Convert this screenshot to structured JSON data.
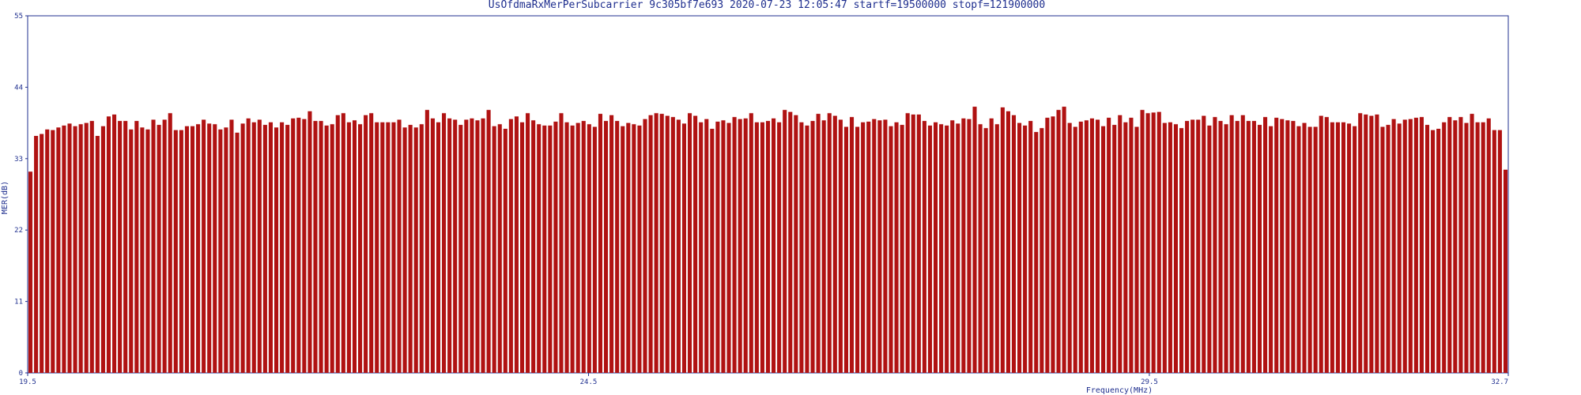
{
  "chart_data": {
    "type": "bar",
    "title": "UsOfdmaRxMerPerSubcarrier 9c305bf7e693 2020-07-23 12:05:47 startf=19500000 stopf=121900000",
    "xlabel": "Frequency(MHz)",
    "ylabel": "MER(dB)",
    "xlim": [
      19.5,
      32.7
    ],
    "ylim": [
      0,
      55
    ],
    "x_ticks": [
      "19.5",
      "24.5",
      "29.5",
      "32.7"
    ],
    "y_ticks": [
      "0",
      "11",
      "22",
      "33",
      "44",
      "55"
    ],
    "grid": false,
    "legend": "none",
    "colors": {
      "bar": "#b01212",
      "axis": "#1f2f8f",
      "background": "#ffffff"
    },
    "values": [
      31,
      36.5,
      36.8,
      37.5,
      37.4,
      37.8,
      38.1,
      38.4,
      38,
      38.3,
      38.5,
      38.8,
      36.5,
      38,
      39.5,
      39.8,
      38.8,
      38.8,
      37.5,
      38.8,
      37.8,
      37.5,
      39,
      38.2,
      39,
      40,
      37.4,
      37.4,
      38,
      38,
      38.3,
      39,
      38.4,
      38.3,
      37.5,
      37.8,
      39,
      37,
      38.4,
      39.2,
      38.6,
      39,
      38.2,
      38.6,
      37.8,
      38.6,
      38.2,
      39.2,
      39.3,
      39.1,
      40.3,
      38.8,
      38.8,
      38.1,
      38.3,
      39.7,
      40,
      38.6,
      38.9,
      38.3,
      39.7,
      40,
      38.6,
      38.6,
      38.6,
      38.6,
      39,
      37.8,
      38.2,
      37.8,
      38.3,
      40.5,
      39.2,
      38.6,
      40,
      39.2,
      39,
      38.2,
      39,
      39.2,
      38.9,
      39.2,
      40.5,
      38,
      38.3,
      37.6,
      39.1,
      39.5,
      38.6,
      40,
      38.9,
      38.3,
      38.1,
      38.1,
      38.7,
      40,
      38.6,
      38.1,
      38.5,
      38.8,
      38.3,
      37.9,
      39.9,
      38.8,
      39.7,
      38.8,
      38,
      38.5,
      38.3,
      38.1,
      39.1,
      39.7,
      40,
      39.9,
      39.6,
      39.4,
      39,
      38.4,
      40,
      39.6,
      38.6,
      39.1,
      37.6,
      38.7,
      38.9,
      38.5,
      39.4,
      39.1,
      39.2,
      40,
      38.6,
      38.6,
      38.8,
      39.2,
      38.6,
      40.5,
      40.2,
      39.7,
      38.6,
      38.1,
      38.8,
      39.9,
      38.9,
      40,
      39.6,
      39,
      37.9,
      39.4,
      37.9,
      38.6,
      38.7,
      39.1,
      38.9,
      39,
      38,
      38.6,
      38.2,
      40,
      39.8,
      39.8,
      38.8,
      38.1,
      38.6,
      38.3,
      38.1,
      38.9,
      38.4,
      39.2,
      39.1,
      41,
      38.3,
      37.7,
      39.2,
      38.3,
      40.9,
      40.3,
      39.7,
      38.5,
      38.1,
      38.8,
      37.1,
      37.7,
      39.3,
      39.5,
      40.5,
      41,
      38.5,
      37.9,
      38.7,
      38.9,
      39.2,
      39,
      38,
      39.3,
      38.2,
      39.7,
      38.6,
      39.3,
      37.9,
      40.5,
      40,
      40.1,
      40.2,
      38.5,
      38.6,
      38.3,
      37.7,
      38.8,
      39,
      39,
      39.6,
      38.1,
      39.4,
      38.8,
      38.3,
      39.7,
      38.8,
      39.7,
      38.8,
      38.8,
      38.2,
      39.4,
      38,
      39.3,
      39.1,
      38.9,
      38.8,
      38,
      38.5,
      37.9,
      37.9,
      39.6,
      39.4,
      38.6,
      38.6,
      38.6,
      38.4,
      38,
      40,
      39.8,
      39.6,
      39.8,
      37.9,
      38.2,
      39.1,
      38.4,
      39,
      39.1,
      39.3,
      39.4,
      38.2,
      37.4,
      37.6,
      38.6,
      39.4,
      38.9,
      39.4,
      38.5,
      39.9,
      38.6,
      38.6,
      39.2,
      37.4,
      37.4,
      31.3
    ]
  }
}
